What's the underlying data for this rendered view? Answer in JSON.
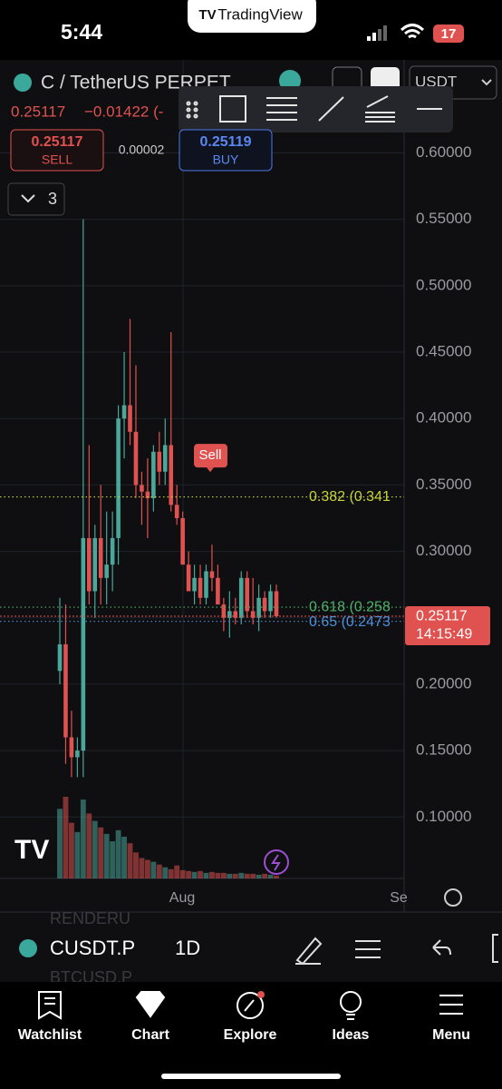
{
  "status_bar": {
    "time": "5:44",
    "app": "TradingView",
    "battery": "17"
  },
  "header": {
    "symbol_title": "C / TetherUS PERPET",
    "last": "0.25117",
    "change": "−0.01422 (-",
    "sell_price": "0.25117",
    "sell_label": "SELL",
    "spread": "0.00002",
    "buy_price": "0.25119",
    "buy_label": "BUY",
    "indicators_count": "3",
    "currency": "USDT"
  },
  "chart_data": {
    "type": "candlestick",
    "open": [
      0.21,
      0.23,
      0.16,
      0.145,
      0.15,
      0.31,
      0.27,
      0.31,
      0.28,
      0.29,
      0.31,
      0.4,
      0.41,
      0.39,
      0.35,
      0.345,
      0.34,
      0.375,
      0.36,
      0.38,
      0.335,
      0.325,
      0.29,
      0.27,
      0.28,
      0.265,
      0.285,
      0.28,
      0.26,
      0.25,
      0.255,
      0.25,
      0.28,
      0.255,
      0.25,
      0.265,
      0.255,
      0.27
    ],
    "high": [
      0.265,
      0.26,
      0.18,
      0.16,
      0.55,
      0.38,
      0.32,
      0.35,
      0.33,
      0.33,
      0.41,
      0.45,
      0.475,
      0.44,
      0.36,
      0.37,
      0.38,
      0.39,
      0.4,
      0.465,
      0.35,
      0.33,
      0.3,
      0.29,
      0.29,
      0.29,
      0.305,
      0.29,
      0.265,
      0.27,
      0.265,
      0.285,
      0.285,
      0.28,
      0.275,
      0.27,
      0.275,
      0.275
    ],
    "low": [
      0.2,
      0.14,
      0.13,
      0.13,
      0.13,
      0.26,
      0.25,
      0.26,
      0.26,
      0.27,
      0.29,
      0.37,
      0.38,
      0.34,
      0.32,
      0.31,
      0.33,
      0.35,
      0.35,
      0.33,
      0.32,
      0.29,
      0.27,
      0.26,
      0.26,
      0.26,
      0.27,
      0.26,
      0.24,
      0.235,
      0.245,
      0.245,
      0.25,
      0.245,
      0.24,
      0.25,
      0.25,
      0.25
    ],
    "close": [
      0.23,
      0.16,
      0.145,
      0.15,
      0.31,
      0.27,
      0.31,
      0.28,
      0.29,
      0.31,
      0.4,
      0.41,
      0.39,
      0.35,
      0.345,
      0.34,
      0.375,
      0.36,
      0.38,
      0.335,
      0.325,
      0.29,
      0.27,
      0.28,
      0.265,
      0.285,
      0.28,
      0.26,
      0.25,
      0.255,
      0.25,
      0.28,
      0.255,
      0.25,
      0.265,
      0.255,
      0.27,
      0.25117
    ],
    "volume": [
      75,
      88,
      60,
      50,
      85,
      70,
      62,
      55,
      48,
      40,
      52,
      45,
      38,
      28,
      22,
      20,
      18,
      15,
      12,
      10,
      14,
      9,
      8,
      7,
      8,
      6,
      7,
      6,
      6,
      5,
      5,
      6,
      5,
      5,
      4,
      5,
      4,
      3
    ],
    "ylim": [
      0.05375,
      0.67
    ],
    "yticks": [
      {
        "value": 0.6,
        "label": "0.60000"
      },
      {
        "value": 0.55,
        "label": "0.55000"
      },
      {
        "value": 0.5,
        "label": "0.50000"
      },
      {
        "value": 0.45,
        "label": "0.45000"
      },
      {
        "value": 0.4,
        "label": "0.40000"
      },
      {
        "value": 0.35,
        "label": "0.35000"
      },
      {
        "value": 0.3,
        "label": "0.30000"
      },
      {
        "value": 0.25,
        "label": "0.25000"
      },
      {
        "value": 0.2,
        "label": "0.20000"
      },
      {
        "value": 0.15,
        "label": "0.15000"
      },
      {
        "value": 0.1,
        "label": "0.10000"
      }
    ],
    "x_labels": [
      "Aug",
      "Se"
    ],
    "up_color": "#4aa79a",
    "down_color": "#e0524f",
    "fib_levels": [
      {
        "label": "0.382 (0.341",
        "price": 0.341,
        "color": "#c6d33a"
      },
      {
        "label": "0.618 (0.258",
        "price": 0.258,
        "color": "#4cb06a"
      },
      {
        "label": "0.65 (0.2473",
        "price": 0.2473,
        "color": "#4e8fd8"
      }
    ],
    "current_price": {
      "price": 0.25117,
      "countdown": "14:15:49"
    },
    "signal": {
      "label": "Sell",
      "price": 0.372
    }
  },
  "bottom_bar": {
    "symbol": "CUSDT.P",
    "interval": "1D",
    "ghost_1": "RENDERU",
    "ghost_2": "BTCUSD.P"
  },
  "tabs": [
    "Watchlist",
    "Chart",
    "Explore",
    "Ideas",
    "Menu"
  ]
}
